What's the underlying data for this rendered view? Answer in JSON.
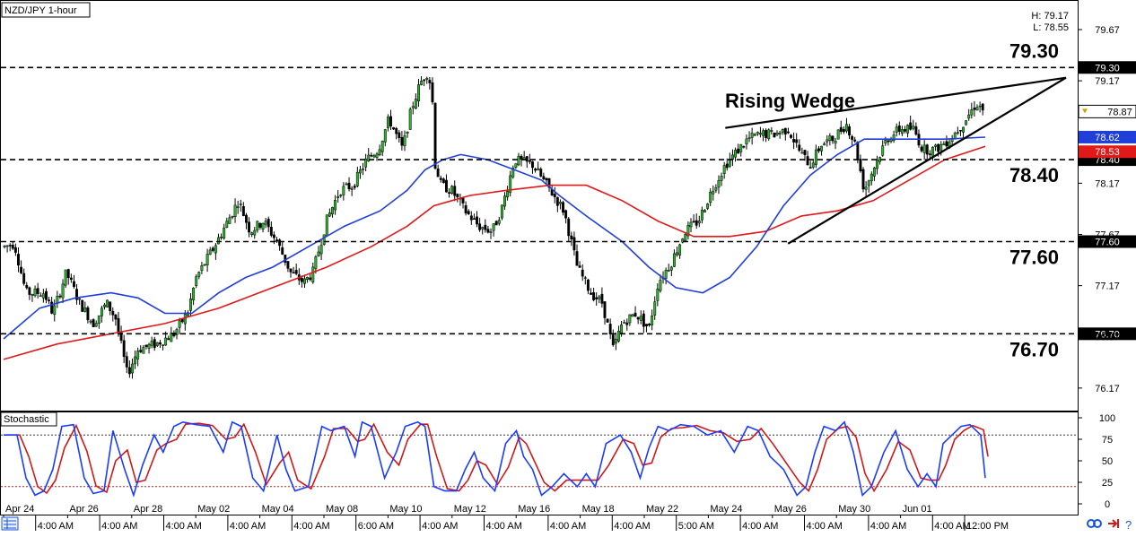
{
  "chart_data": [
    {
      "type": "candlestick",
      "title": "NZD/JPY 1-hour",
      "hl": {
        "high": "H: 79.17",
        "low": "L: 78.55"
      },
      "ylim": [
        75.95,
        79.95
      ],
      "y_ticks": [
        "79.67",
        "79.17",
        "78.17",
        "77.67",
        "77.17",
        "76.67",
        "76.17"
      ],
      "x_labels": [
        "Apr 24",
        "4:00 AM",
        "Apr 26",
        "4:00 AM",
        "Apr 28",
        "4:00 AM",
        "May 02",
        "4:00 AM",
        "May 04",
        "4:00 AM",
        "May 08",
        "6:00 AM",
        "May 10",
        "4:00 AM",
        "May 12",
        "4:00 AM",
        "May 16",
        "4:00 AM",
        "May 18",
        "4:00 AM",
        "May 22",
        "5:00 AM",
        "May 24",
        "4:00 AM",
        "May 26",
        "4:00 AM",
        "May 30",
        "4:00 AM",
        "Jun 01",
        "4:00 AM",
        "12:00 PM"
      ],
      "levels": [
        {
          "value": 79.3,
          "label": "79.30",
          "tag": "79.30"
        },
        {
          "value": 78.4,
          "label": "78.40",
          "tag": "78.40"
        },
        {
          "value": 77.6,
          "label": "77.60",
          "tag": "77.60"
        },
        {
          "value": 76.7,
          "label": "76.70",
          "tag": "76.70"
        }
      ],
      "current_price": "78.87",
      "ma_tags": {
        "blue": "78.62",
        "red": "78.53"
      },
      "annotation": "Rising Wedge",
      "price_path": [
        [
          0,
          77.55
        ],
        [
          12,
          77.58
        ],
        [
          25,
          77.1
        ],
        [
          45,
          77.1
        ],
        [
          55,
          76.9
        ],
        [
          70,
          77.3
        ],
        [
          85,
          77.0
        ],
        [
          100,
          76.8
        ],
        [
          115,
          77.0
        ],
        [
          125,
          76.85
        ],
        [
          138,
          76.3
        ],
        [
          150,
          76.55
        ],
        [
          170,
          76.6
        ],
        [
          190,
          76.7
        ],
        [
          205,
          76.9
        ],
        [
          215,
          77.25
        ],
        [
          235,
          77.55
        ],
        [
          250,
          77.8
        ],
        [
          262,
          78.0
        ],
        [
          275,
          77.7
        ],
        [
          290,
          77.8
        ],
        [
          305,
          77.6
        ],
        [
          320,
          77.3
        ],
        [
          335,
          77.2
        ],
        [
          345,
          77.3
        ],
        [
          360,
          77.8
        ],
        [
          375,
          78.1
        ],
        [
          390,
          78.15
        ],
        [
          405,
          78.4
        ],
        [
          418,
          78.5
        ],
        [
          430,
          78.8
        ],
        [
          445,
          78.5
        ],
        [
          455,
          78.9
        ],
        [
          465,
          79.15
        ],
        [
          472,
          79.25
        ],
        [
          478,
          79.1
        ],
        [
          480,
          78.4
        ],
        [
          488,
          78.15
        ],
        [
          500,
          78.1
        ],
        [
          515,
          77.9
        ],
        [
          530,
          77.75
        ],
        [
          545,
          77.7
        ],
        [
          555,
          77.9
        ],
        [
          570,
          78.4
        ],
        [
          590,
          78.35
        ],
        [
          610,
          78.1
        ],
        [
          625,
          77.9
        ],
        [
          640,
          77.35
        ],
        [
          655,
          77.1
        ],
        [
          668,
          77.0
        ],
        [
          680,
          76.55
        ],
        [
          690,
          76.8
        ],
        [
          705,
          76.9
        ],
        [
          720,
          76.75
        ],
        [
          730,
          77.2
        ],
        [
          745,
          77.4
        ],
        [
          760,
          77.7
        ],
        [
          775,
          77.8
        ],
        [
          790,
          78.1
        ],
        [
          805,
          78.35
        ],
        [
          820,
          78.5
        ],
        [
          830,
          78.6
        ],
        [
          845,
          78.65
        ],
        [
          860,
          78.65
        ],
        [
          875,
          78.7
        ],
        [
          890,
          78.45
        ],
        [
          900,
          78.35
        ],
        [
          912,
          78.55
        ],
        [
          925,
          78.6
        ],
        [
          940,
          78.75
        ],
        [
          950,
          78.55
        ],
        [
          960,
          78.1
        ],
        [
          972,
          78.35
        ],
        [
          985,
          78.6
        ],
        [
          1000,
          78.7
        ],
        [
          1015,
          78.7
        ],
        [
          1025,
          78.5
        ],
        [
          1040,
          78.5
        ],
        [
          1055,
          78.6
        ],
        [
          1070,
          78.75
        ],
        [
          1085,
          78.95
        ],
        [
          1095,
          78.87
        ]
      ],
      "blue_ma": [
        [
          0,
          76.65
        ],
        [
          40,
          76.95
        ],
        [
          80,
          77.05
        ],
        [
          120,
          77.1
        ],
        [
          150,
          77.05
        ],
        [
          180,
          76.9
        ],
        [
          210,
          76.9
        ],
        [
          240,
          77.1
        ],
        [
          270,
          77.25
        ],
        [
          300,
          77.35
        ],
        [
          340,
          77.55
        ],
        [
          380,
          77.75
        ],
        [
          420,
          77.9
        ],
        [
          450,
          78.1
        ],
        [
          470,
          78.3
        ],
        [
          490,
          78.4
        ],
        [
          510,
          78.45
        ],
        [
          540,
          78.4
        ],
        [
          570,
          78.3
        ],
        [
          600,
          78.2
        ],
        [
          620,
          78.05
        ],
        [
          650,
          77.85
        ],
        [
          690,
          77.6
        ],
        [
          720,
          77.35
        ],
        [
          750,
          77.15
        ],
        [
          780,
          77.1
        ],
        [
          810,
          77.25
        ],
        [
          840,
          77.55
        ],
        [
          870,
          77.95
        ],
        [
          900,
          78.25
        ],
        [
          930,
          78.45
        ],
        [
          960,
          78.6
        ],
        [
          990,
          78.6
        ],
        [
          1020,
          78.6
        ],
        [
          1050,
          78.6
        ],
        [
          1095,
          78.62
        ]
      ],
      "red_ma": [
        [
          0,
          76.45
        ],
        [
          60,
          76.6
        ],
        [
          120,
          76.7
        ],
        [
          180,
          76.8
        ],
        [
          240,
          76.95
        ],
        [
          300,
          77.15
        ],
        [
          360,
          77.35
        ],
        [
          410,
          77.55
        ],
        [
          450,
          77.75
        ],
        [
          480,
          77.95
        ],
        [
          520,
          78.05
        ],
        [
          560,
          78.1
        ],
        [
          610,
          78.15
        ],
        [
          650,
          78.15
        ],
        [
          690,
          78.0
        ],
        [
          730,
          77.8
        ],
        [
          770,
          77.65
        ],
        [
          810,
          77.65
        ],
        [
          850,
          77.7
        ],
        [
          890,
          77.85
        ],
        [
          930,
          77.9
        ],
        [
          970,
          78.0
        ],
        [
          1010,
          78.2
        ],
        [
          1050,
          78.4
        ],
        [
          1095,
          78.53
        ]
      ]
    },
    {
      "type": "line",
      "title": "Stochastic",
      "ylim": [
        0,
        100
      ],
      "y_ticks": [
        "100",
        "75",
        "50",
        "25",
        "0"
      ],
      "levels": [
        80,
        20
      ],
      "k_line": [
        [
          0,
          80
        ],
        [
          15,
          80
        ],
        [
          25,
          30
        ],
        [
          35,
          10
        ],
        [
          45,
          15
        ],
        [
          55,
          40
        ],
        [
          65,
          90
        ],
        [
          78,
          92
        ],
        [
          90,
          30
        ],
        [
          100,
          12
        ],
        [
          112,
          15
        ],
        [
          122,
          85
        ],
        [
          135,
          40
        ],
        [
          145,
          10
        ],
        [
          155,
          45
        ],
        [
          168,
          80
        ],
        [
          178,
          60
        ],
        [
          190,
          90
        ],
        [
          200,
          95
        ],
        [
          215,
          92
        ],
        [
          230,
          90
        ],
        [
          245,
          60
        ],
        [
          255,
          95
        ],
        [
          265,
          90
        ],
        [
          278,
          30
        ],
        [
          290,
          15
        ],
        [
          305,
          80
        ],
        [
          315,
          40
        ],
        [
          325,
          15
        ],
        [
          340,
          20
        ],
        [
          355,
          90
        ],
        [
          365,
          85
        ],
        [
          380,
          90
        ],
        [
          392,
          55
        ],
        [
          400,
          95
        ],
        [
          410,
          90
        ],
        [
          425,
          30
        ],
        [
          438,
          60
        ],
        [
          448,
          90
        ],
        [
          462,
          95
        ],
        [
          470,
          90
        ],
        [
          480,
          20
        ],
        [
          492,
          15
        ],
        [
          505,
          15
        ],
        [
          515,
          40
        ],
        [
          525,
          60
        ],
        [
          535,
          30
        ],
        [
          548,
          15
        ],
        [
          560,
          70
        ],
        [
          572,
          85
        ],
        [
          580,
          55
        ],
        [
          590,
          40
        ],
        [
          600,
          10
        ],
        [
          612,
          20
        ],
        [
          625,
          35
        ],
        [
          640,
          20
        ],
        [
          650,
          35
        ],
        [
          660,
          20
        ],
        [
          672,
          70
        ],
        [
          688,
          80
        ],
        [
          700,
          60
        ],
        [
          710,
          30
        ],
        [
          720,
          65
        ],
        [
          730,
          90
        ],
        [
          742,
          85
        ],
        [
          755,
          92
        ],
        [
          770,
          90
        ],
        [
          785,
          80
        ],
        [
          800,
          85
        ],
        [
          815,
          60
        ],
        [
          830,
          90
        ],
        [
          842,
          85
        ],
        [
          855,
          55
        ],
        [
          870,
          40
        ],
        [
          885,
          10
        ],
        [
          895,
          20
        ],
        [
          905,
          60
        ],
        [
          915,
          90
        ],
        [
          928,
          85
        ],
        [
          938,
          95
        ],
        [
          948,
          60
        ],
        [
          958,
          10
        ],
        [
          968,
          20
        ],
        [
          982,
          60
        ],
        [
          995,
          85
        ],
        [
          1008,
          40
        ],
        [
          1020,
          20
        ],
        [
          1030,
          35
        ],
        [
          1040,
          20
        ],
        [
          1048,
          70
        ],
        [
          1058,
          80
        ],
        [
          1068,
          90
        ],
        [
          1078,
          92
        ],
        [
          1090,
          80
        ],
        [
          1095,
          30
        ]
      ]
    }
  ],
  "ui": {
    "link_icon": "link-icon",
    "arrow_icon": "arrow-right-icon",
    "help_icon": "question-icon",
    "grid_icon": "grid-icon"
  },
  "colors": {
    "blue_ma": "#1f3fd8",
    "red_ma": "#e01919",
    "candle_up": "#2ab52a",
    "candle_down": "#000000",
    "stoch_k": "#1a3cff",
    "stoch_d": "#d01818"
  }
}
